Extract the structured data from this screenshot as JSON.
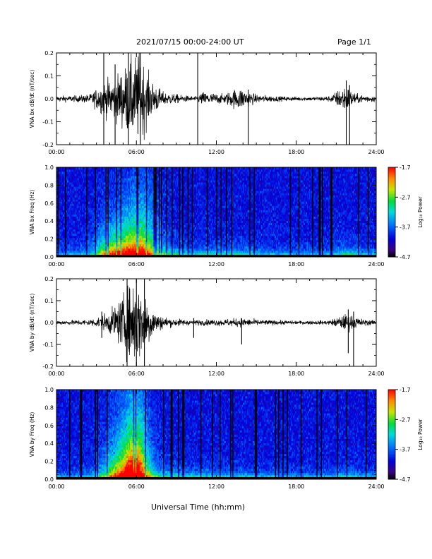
{
  "header": {
    "title": "2021/07/15  00:00-24:00 UT",
    "page": "Page 1/1"
  },
  "footer": {
    "xlabel": "Universal Time (hh:mm)"
  },
  "chart_data": [
    {
      "type": "line",
      "ylabel": "VNA bx dB/dt (nT/sec)",
      "xlim": [
        "00:00",
        "24:00"
      ],
      "ylim": [
        -0.2,
        0.2
      ],
      "x_ticks": [
        "00:00",
        "06:00",
        "12:00",
        "18:00",
        "24:00"
      ],
      "y_ticks": [
        "0.2",
        "0.1",
        "0.0",
        "-0.1",
        "-0.2"
      ],
      "activity": [
        {
          "t": 0.0,
          "amp": 0.012
        },
        {
          "t": 1.5,
          "amp": 0.014
        },
        {
          "t": 2.5,
          "amp": 0.02
        },
        {
          "t": 3.5,
          "amp": 0.07
        },
        {
          "t": 4.5,
          "amp": 0.1
        },
        {
          "t": 5.5,
          "amp": 0.16
        },
        {
          "t": 6.2,
          "amp": 0.2
        },
        {
          "t": 7.0,
          "amp": 0.09
        },
        {
          "t": 8.0,
          "amp": 0.03
        },
        {
          "t": 9.5,
          "amp": 0.015
        },
        {
          "t": 10.5,
          "amp": 0.01
        },
        {
          "t": 11.0,
          "amp": 0.03
        },
        {
          "t": 12.5,
          "amp": 0.02
        },
        {
          "t": 13.7,
          "amp": 0.05
        },
        {
          "t": 15.0,
          "amp": 0.018
        },
        {
          "t": 17.0,
          "amp": 0.01
        },
        {
          "t": 19.0,
          "amp": 0.008
        },
        {
          "t": 20.5,
          "amp": 0.012
        },
        {
          "t": 21.7,
          "amp": 0.06
        },
        {
          "t": 22.5,
          "amp": 0.02
        },
        {
          "t": 24.0,
          "amp": 0.012
        }
      ],
      "spikes": [
        {
          "t": 3.55,
          "lo": -0.2,
          "hi": 0.2
        },
        {
          "t": 4.4,
          "lo": -0.2,
          "hi": 0.15
        },
        {
          "t": 5.4,
          "lo": -0.2,
          "hi": 0.2
        },
        {
          "t": 6.3,
          "lo": -0.2,
          "hi": 0.2
        },
        {
          "t": 10.6,
          "lo": -0.2,
          "hi": 0.2
        },
        {
          "t": 14.4,
          "lo": -0.2,
          "hi": 0.04
        },
        {
          "t": 21.75,
          "lo": -0.2,
          "hi": 0.08
        },
        {
          "t": 22.0,
          "lo": -0.2,
          "hi": 0.06
        }
      ]
    },
    {
      "type": "heatmap",
      "ylabel": "VNA bx Freq (Hz)",
      "colorbar_label": "Log₁₀ Power",
      "colorbar_ticks": [
        "-1.7",
        "-2.7",
        "-3.7",
        "-4.7"
      ],
      "crange": [
        -4.7,
        -1.7
      ],
      "xlim": [
        "00:00",
        "24:00"
      ],
      "ylim": [
        0.0,
        1.0
      ],
      "x_ticks": [
        "00:00",
        "06:00",
        "12:00",
        "18:00",
        "24:00"
      ],
      "y_ticks": [
        "1.0",
        "0.8",
        "0.6",
        "0.4",
        "0.2",
        "0.0"
      ],
      "events": [
        {
          "t": 5.3,
          "w": 1.8,
          "power": 2.2,
          "fmax": 0.32
        },
        {
          "t": 6.5,
          "w": 1.2,
          "power": 1.2,
          "fmax": 0.55
        },
        {
          "t": 3.8,
          "w": 1.0,
          "power": 0.9,
          "fmax": 0.18
        },
        {
          "t": 8.5,
          "w": 1.5,
          "power": 0.6,
          "fmax": 0.1
        },
        {
          "t": 11.5,
          "w": 1.5,
          "power": 0.5,
          "fmax": 0.08
        },
        {
          "t": 14.0,
          "w": 1.5,
          "power": 0.5,
          "fmax": 0.08
        },
        {
          "t": 21.8,
          "w": 1.0,
          "power": 0.6,
          "fmax": 0.1
        }
      ]
    },
    {
      "type": "line",
      "ylabel": "VNA by dB/dt (nT/sec)",
      "xlim": [
        "00:00",
        "24:00"
      ],
      "ylim": [
        -0.2,
        0.2
      ],
      "x_ticks": [
        "00:00",
        "06:00",
        "12:00",
        "18:00",
        "24:00"
      ],
      "y_ticks": [
        "0.2",
        "0.1",
        "0.0",
        "-0.1",
        "-0.2"
      ],
      "activity": [
        {
          "t": 0.0,
          "amp": 0.01
        },
        {
          "t": 2.0,
          "amp": 0.012
        },
        {
          "t": 3.0,
          "amp": 0.02
        },
        {
          "t": 4.0,
          "amp": 0.05
        },
        {
          "t": 5.0,
          "amp": 0.12
        },
        {
          "t": 5.8,
          "amp": 0.2
        },
        {
          "t": 6.6,
          "amp": 0.14
        },
        {
          "t": 7.5,
          "amp": 0.04
        },
        {
          "t": 8.5,
          "amp": 0.02
        },
        {
          "t": 10.0,
          "amp": 0.012
        },
        {
          "t": 12.5,
          "amp": 0.015
        },
        {
          "t": 13.8,
          "amp": 0.02
        },
        {
          "t": 15.5,
          "amp": 0.012
        },
        {
          "t": 18.0,
          "amp": 0.008
        },
        {
          "t": 20.5,
          "amp": 0.01
        },
        {
          "t": 21.8,
          "amp": 0.04
        },
        {
          "t": 23.0,
          "amp": 0.015
        },
        {
          "t": 24.0,
          "amp": 0.01
        }
      ],
      "spikes": [
        {
          "t": 3.4,
          "lo": -0.07,
          "hi": 0.05
        },
        {
          "t": 5.3,
          "lo": -0.2,
          "hi": 0.2
        },
        {
          "t": 6.0,
          "lo": -0.2,
          "hi": 0.2
        },
        {
          "t": 6.6,
          "lo": -0.2,
          "hi": 0.2
        },
        {
          "t": 10.3,
          "lo": -0.07,
          "hi": 0.02
        },
        {
          "t": 13.9,
          "lo": -0.1,
          "hi": 0.02
        },
        {
          "t": 21.9,
          "lo": -0.14,
          "hi": 0.06
        },
        {
          "t": 22.3,
          "lo": -0.2,
          "hi": 0.05
        }
      ]
    },
    {
      "type": "heatmap",
      "ylabel": "VNA by Freq (Hz)",
      "colorbar_label": "Log₁₀ Power",
      "colorbar_ticks": [
        "-1.7",
        "-2.7",
        "-3.7",
        "-4.7"
      ],
      "crange": [
        -4.7,
        -1.7
      ],
      "xlim": [
        "00:00",
        "24:00"
      ],
      "ylim": [
        0.0,
        1.0
      ],
      "x_ticks": [
        "00:00",
        "06:00",
        "12:00",
        "18:00",
        "24:00"
      ],
      "y_ticks": [
        "1.0",
        "0.8",
        "0.6",
        "0.4",
        "0.2",
        "0.0"
      ],
      "events": [
        {
          "t": 5.4,
          "w": 1.5,
          "power": 2.3,
          "fmax": 0.45
        },
        {
          "t": 6.0,
          "w": 0.8,
          "power": 1.5,
          "fmax": 0.7
        },
        {
          "t": 4.0,
          "w": 1.2,
          "power": 0.7,
          "fmax": 0.15
        },
        {
          "t": 8.0,
          "w": 2.0,
          "power": 0.6,
          "fmax": 0.1
        },
        {
          "t": 12.0,
          "w": 2.5,
          "power": 0.4,
          "fmax": 0.07
        },
        {
          "t": 21.8,
          "w": 1.0,
          "power": 0.4,
          "fmax": 0.08
        }
      ]
    }
  ]
}
